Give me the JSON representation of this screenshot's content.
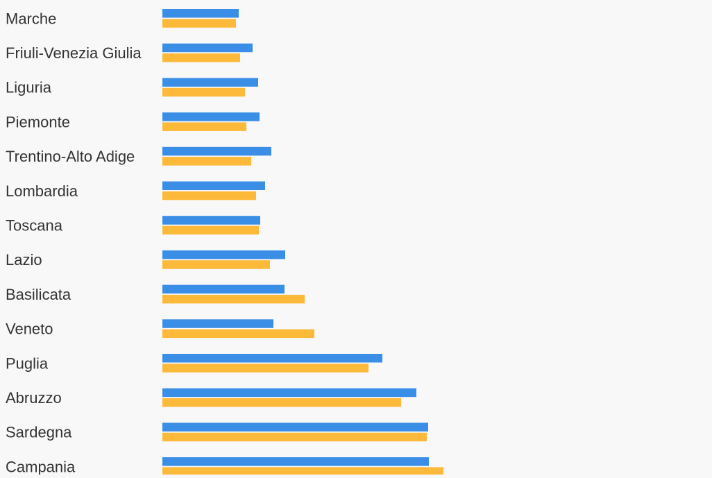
{
  "chart_data": {
    "type": "bar",
    "orientation": "horizontal",
    "grid": false,
    "legend": "none",
    "categories": [
      "Marche",
      "Friuli-Venezia Giulia",
      "Liguria",
      "Piemonte",
      "Trentino-Alto Adige",
      "Lombardia",
      "Toscana",
      "Lazio",
      "Basilicata",
      "Veneto",
      "Puglia",
      "Abruzzo",
      "Sardegna",
      "Campania"
    ],
    "series": [
      {
        "color": "#3a8ee6",
        "values": [
          110,
          130,
          138,
          140,
          157,
          148,
          141,
          177,
          176,
          160,
          317,
          366,
          383,
          384
        ]
      },
      {
        "color": "#fdb93a",
        "values": [
          106,
          112,
          119,
          121,
          128,
          135,
          139,
          155,
          205,
          219,
          297,
          344,
          381,
          405
        ]
      }
    ],
    "xlim": [
      0,
      800
    ]
  }
}
